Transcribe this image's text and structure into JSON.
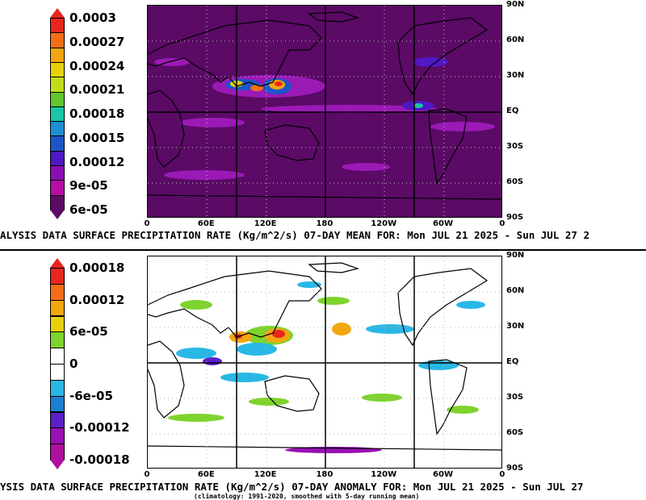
{
  "top": {
    "colorbar": {
      "labels": [
        "0.0003",
        "0.00027",
        "0.00024",
        "0.00021",
        "0.00018",
        "0.00015",
        "0.00012",
        "9e-05",
        "6e-05"
      ],
      "colors": [
        "#e8261e",
        "#f46d17",
        "#f3a60f",
        "#e7d10d",
        "#c2dd19",
        "#63c62f",
        "#19c6a6",
        "#1e8fd5",
        "#1d55c8",
        "#4e18c3",
        "#8a0fb3",
        "#b50fa6",
        "#5b0a66"
      ]
    },
    "caption": "ALYSIS DATA SURFACE PRECIPITATION RATE (Kg/m^2/s) 07-DAY MEAN FOR: Mon JUL 21 2025 - Sun JUL 27 2"
  },
  "bottom": {
    "colorbar": {
      "labels": [
        "0.00018",
        "0.00012",
        "6e-05",
        "0",
        "-6e-05",
        "-0.00012",
        "-0.00018"
      ],
      "colors": [
        "#e8261e",
        "#f46d17",
        "#f3a60f",
        "#e7d10d",
        "#7ed32c",
        "#ffffff",
        "#ffffff",
        "#29b8e6",
        "#1d7fd2",
        "#5b1fc9",
        "#9910b4",
        "#b0109e"
      ]
    },
    "caption": "YSIS DATA SURFACE PRECIPITATION RATE (Kg/m^2/s) 07-DAY ANOMALY FOR: Mon JUL 21 2025 - Sun JUL 27",
    "subcaption": "(climatology: 1991-2020, smoothed with 5-day running mean)"
  },
  "lat_labels": [
    "90N",
    "60N",
    "30N",
    "EQ",
    "30S",
    "60S",
    "90S"
  ],
  "lon_labels": [
    "0",
    "60E",
    "120E",
    "180",
    "120W",
    "60W",
    "0"
  ]
}
